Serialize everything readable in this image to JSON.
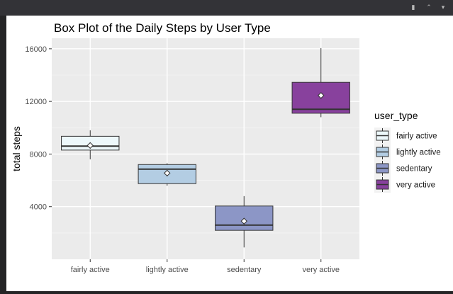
{
  "window": {
    "icons": [
      "broom-icon",
      "maximize-icon",
      "collapse-icon"
    ]
  },
  "chart_data": {
    "type": "box",
    "title": "Box Plot of the Daily Steps by User Type",
    "xlabel": "",
    "ylabel": "total steps",
    "ylim": [
      0,
      16800
    ],
    "yticks": [
      4000,
      8000,
      12000,
      16000
    ],
    "grid": true,
    "legend": {
      "title": "user_type",
      "position": "right"
    },
    "categories": [
      "fairly active",
      "lightly active",
      "sedentary",
      "very active"
    ],
    "series": [
      {
        "name": "fairly active",
        "color": "#edf8fb",
        "min": 7600,
        "q1": 8300,
        "median": 8600,
        "q3": 9350,
        "max": 9800,
        "mean": 8650
      },
      {
        "name": "lightly active",
        "color": "#b3cde3",
        "min": 5600,
        "q1": 5750,
        "median": 6850,
        "q3": 7200,
        "max": 7300,
        "mean": 6550
      },
      {
        "name": "sedentary",
        "color": "#8c96c6",
        "min": 900,
        "q1": 2200,
        "median": 2600,
        "q3": 4050,
        "max": 4800,
        "mean": 2900
      },
      {
        "name": "very active",
        "color": "#88419d",
        "min": 10800,
        "q1": 11100,
        "median": 11400,
        "q3": 13450,
        "max": 16050,
        "mean": 12450
      }
    ]
  }
}
